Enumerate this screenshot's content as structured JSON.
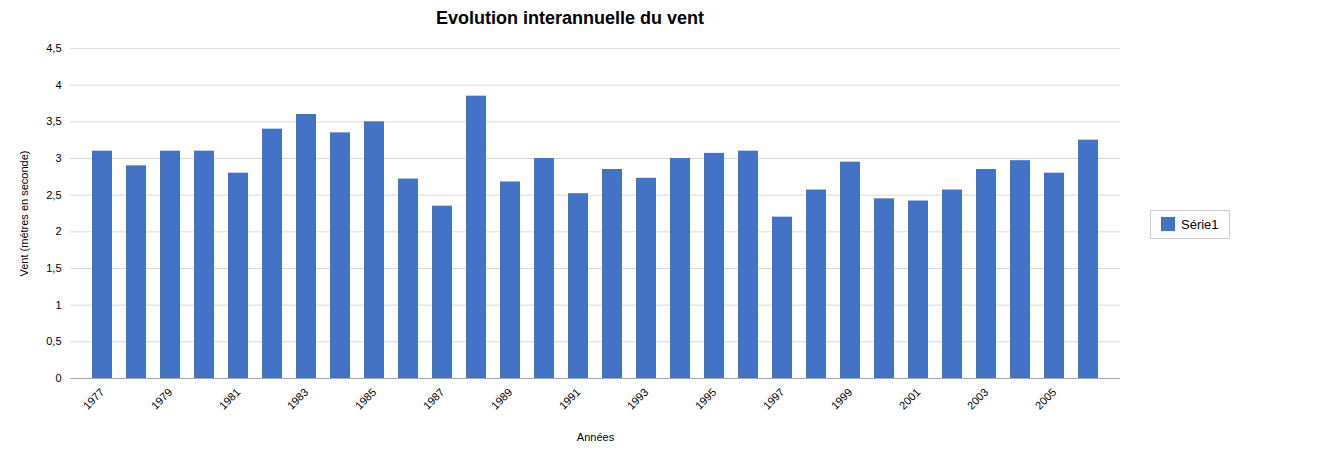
{
  "chart_data": {
    "type": "bar",
    "title": "Evolution interannuelle du vent",
    "xlabel": "Années",
    "ylabel": "Vent (métres en seconde)",
    "categories": [
      "1977",
      null,
      "1979",
      null,
      "1981",
      null,
      "1983",
      null,
      "1985",
      null,
      "1987",
      null,
      "1989",
      null,
      "1991",
      null,
      "1993",
      null,
      "1995",
      null,
      "1997",
      null,
      "1999",
      null,
      "2001",
      null,
      "2003",
      null,
      "2005",
      null
    ],
    "series": [
      {
        "name": "Série1",
        "color": "#4472C4",
        "values": [
          3.1,
          2.9,
          3.1,
          3.1,
          2.8,
          3.4,
          3.6,
          3.35,
          3.5,
          2.72,
          2.35,
          3.85,
          2.68,
          3.0,
          2.52,
          2.85,
          2.73,
          3.0,
          3.07,
          3.1,
          2.2,
          2.57,
          2.95,
          2.45,
          2.42,
          2.57,
          2.85,
          2.97,
          2.8,
          3.25
        ]
      }
    ],
    "ylim": [
      0,
      4.5
    ],
    "yticks": [
      0,
      {
        "value": 0.5,
        "label": "0,5"
      },
      1,
      {
        "value": 1.5,
        "label": "1,5"
      },
      2,
      {
        "value": 2.5,
        "label": "2,5"
      },
      3,
      {
        "value": 3.5,
        "label": "3,5"
      },
      4,
      {
        "value": 4.5,
        "label": "4,5"
      }
    ],
    "grid": true,
    "legend": "right"
  }
}
